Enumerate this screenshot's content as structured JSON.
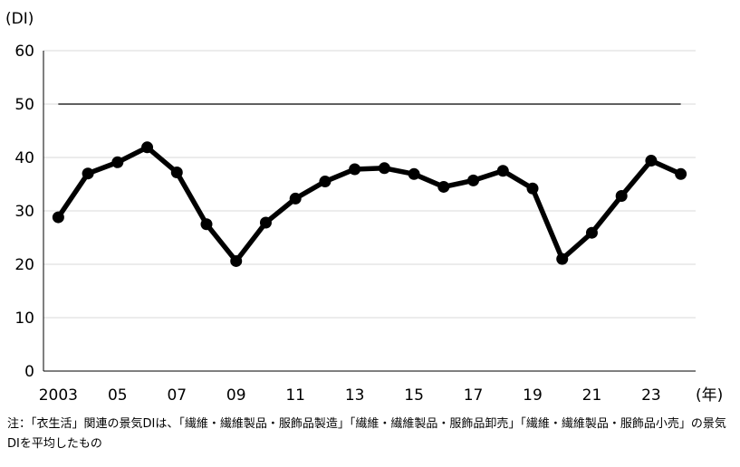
{
  "chart_data": {
    "type": "line",
    "y_unit_label": "(DI)",
    "x_unit_label": "(年)",
    "ylim": [
      0,
      60
    ],
    "yticks": [
      "0",
      "10",
      "20",
      "30",
      "40",
      "50",
      "60"
    ],
    "grid": true,
    "xlim": [
      2002.5,
      2024.5
    ],
    "xtick_values": [
      2003,
      2005,
      2007,
      2009,
      2011,
      2013,
      2015,
      2017,
      2019,
      2021,
      2023
    ],
    "xtick_labels": [
      "2003",
      "05",
      "07",
      "09",
      "11",
      "13",
      "15",
      "17",
      "19",
      "21",
      "23"
    ],
    "reference_line": {
      "y": 50,
      "x_from": 2003,
      "x_to": 2024
    },
    "series": [
      {
        "x": [
          2003,
          2004,
          2005,
          2006,
          2007,
          2008,
          2009,
          2010,
          2011,
          2012,
          2013,
          2014,
          2015,
          2016,
          2017,
          2018,
          2019,
          2020,
          2021,
          2022,
          2023,
          2024
        ],
        "values": [
          28.8,
          37.0,
          39.1,
          41.9,
          37.2,
          27.5,
          20.6,
          27.8,
          32.3,
          35.5,
          37.8,
          38.0,
          36.9,
          34.5,
          35.7,
          37.5,
          34.2,
          21.0,
          25.9,
          32.8,
          39.4,
          36.9
        ]
      }
    ],
    "colors": {
      "line": "#000000",
      "grid": "#d9d9d9",
      "axis": "#000000"
    }
  },
  "note": "注：「衣生活」関連の景気DIは、「繊維・繊維製品・服飾品製造」「繊維・繊維製品・服飾品卸売」「繊維・繊維製品・服飾品小売」の景気DIを平均したもの"
}
